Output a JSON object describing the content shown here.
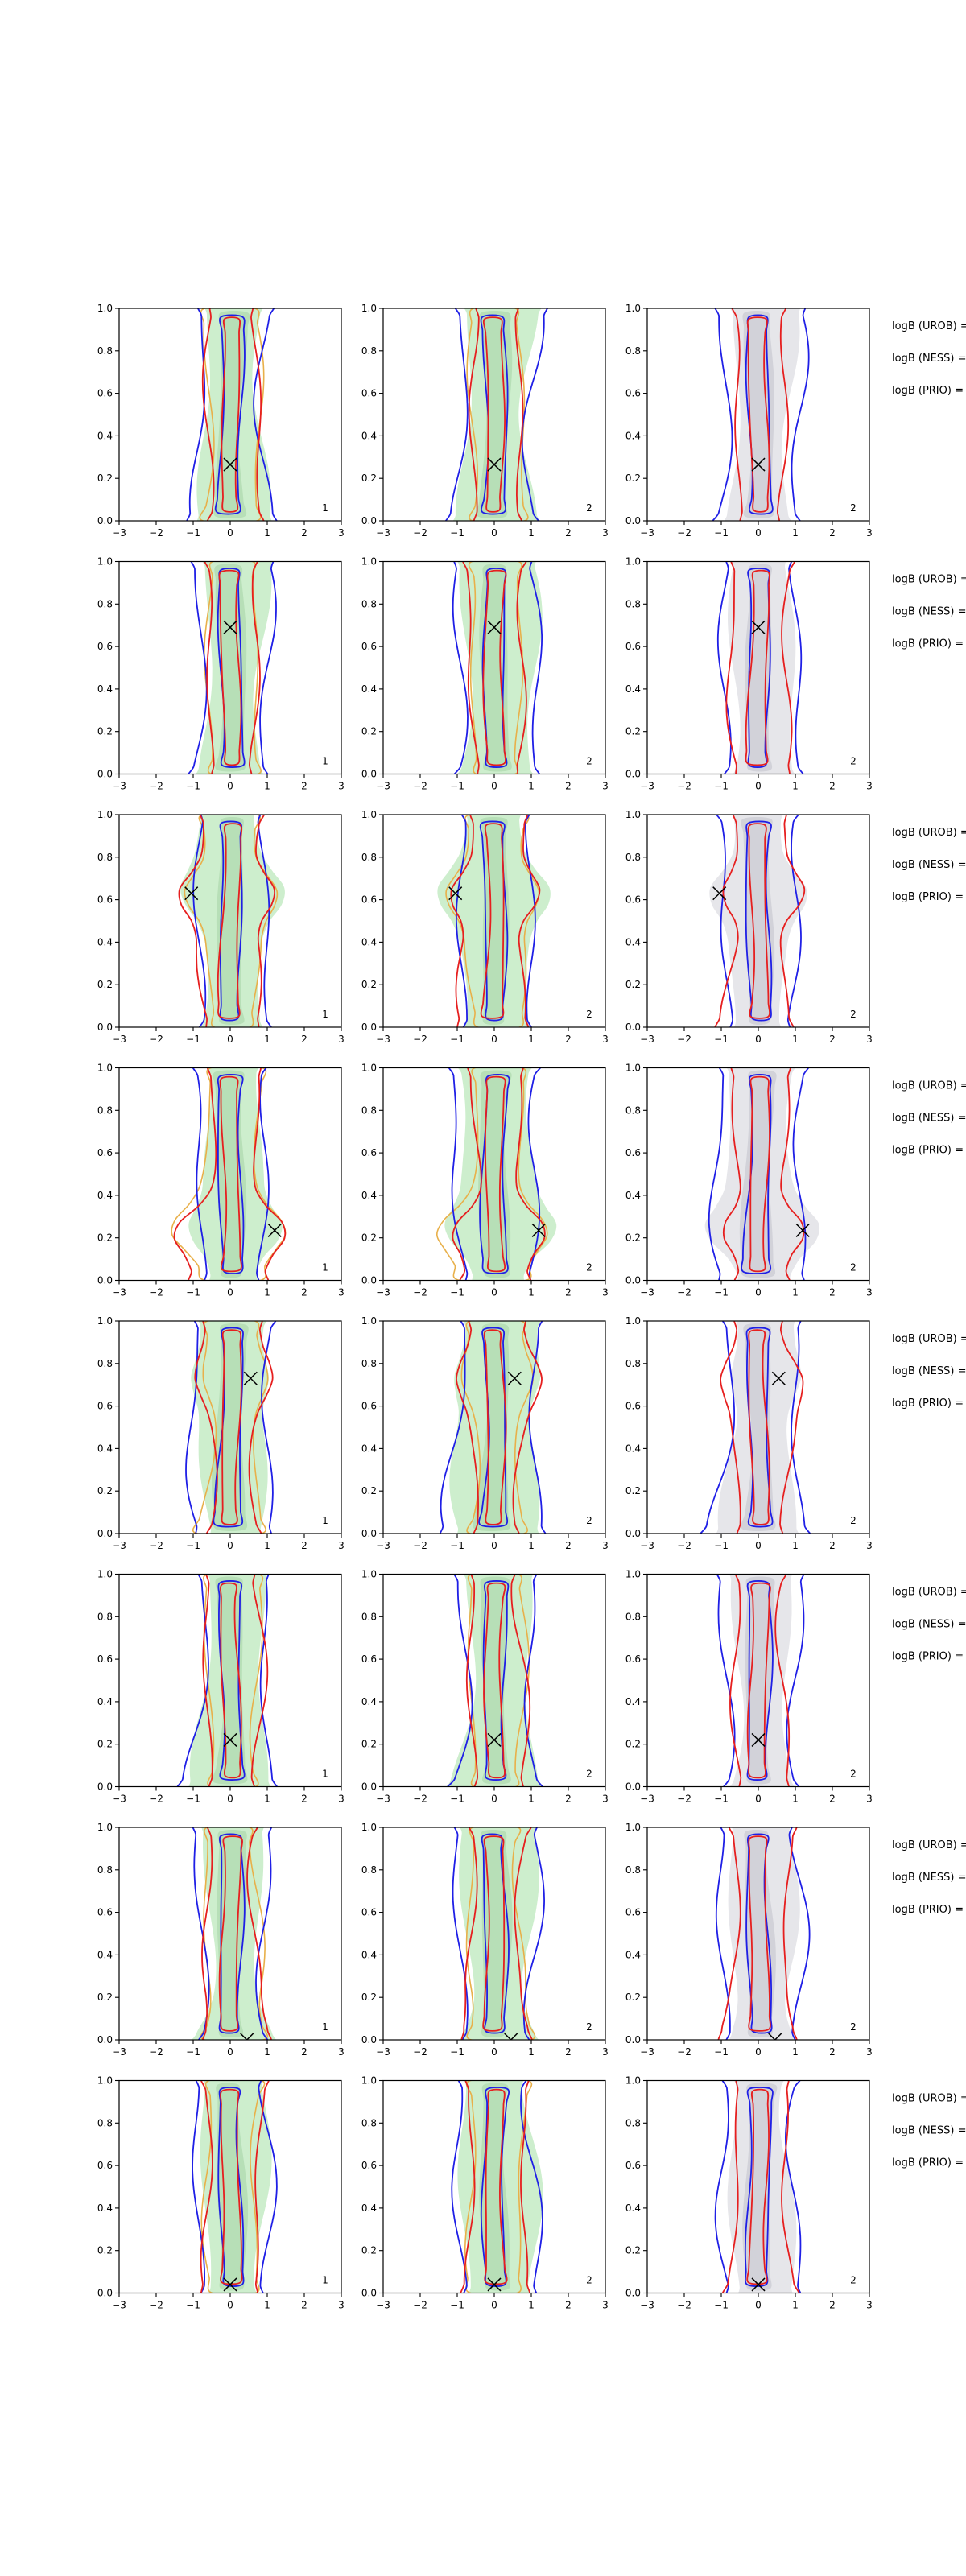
{
  "figure": {
    "rows": 8,
    "cols": 3,
    "xlim": [
      -3,
      3
    ],
    "ylim": [
      0,
      1
    ],
    "x_ticks": [
      "−3",
      "−2",
      "−1",
      "0",
      "1",
      "2",
      "3"
    ],
    "y_ticks": [
      "0.0",
      "0.2",
      "0.4",
      "0.6",
      "0.8",
      "1.0"
    ],
    "colors": {
      "fill_green": "#cdeecd",
      "fill_green_dark": "#aed9ae",
      "fill_grey": "#e6e6ea",
      "fill_grey_dark": "#c9c9d2",
      "blue": "#1f1fe6",
      "red": "#e61f1f",
      "orange": "#e8b04a",
      "marker": "#000000"
    },
    "side_labels": [
      "logB (UROB) =",
      "logB (NESS) =",
      "logB (PRIO) ="
    ]
  },
  "chart_data": {
    "type": "contour-grid",
    "panels": [
      {
        "row": 0,
        "marker": [
          0.0,
          0.265
        ],
        "counts": [
          "1",
          "2",
          "2"
        ]
      },
      {
        "row": 1,
        "marker": [
          0.0,
          0.69
        ],
        "counts": [
          "1",
          "2",
          "2"
        ]
      },
      {
        "row": 2,
        "marker": [
          -1.05,
          0.63
        ],
        "counts": [
          "1",
          "2",
          "2"
        ]
      },
      {
        "row": 3,
        "marker": [
          1.2,
          0.235
        ],
        "counts": [
          "1",
          "2",
          "2"
        ]
      },
      {
        "row": 4,
        "marker": [
          0.55,
          0.73
        ],
        "counts": [
          "1",
          "2",
          "2"
        ]
      },
      {
        "row": 5,
        "marker": [
          0.0,
          0.22
        ],
        "counts": [
          "1",
          "2",
          "2"
        ]
      },
      {
        "row": 6,
        "marker": [
          0.45,
          0.0
        ],
        "counts": [
          "1",
          "2",
          "2"
        ]
      },
      {
        "row": 7,
        "marker": [
          0.0,
          0.04
        ],
        "counts": [
          "1",
          "2",
          "2"
        ]
      }
    ]
  }
}
